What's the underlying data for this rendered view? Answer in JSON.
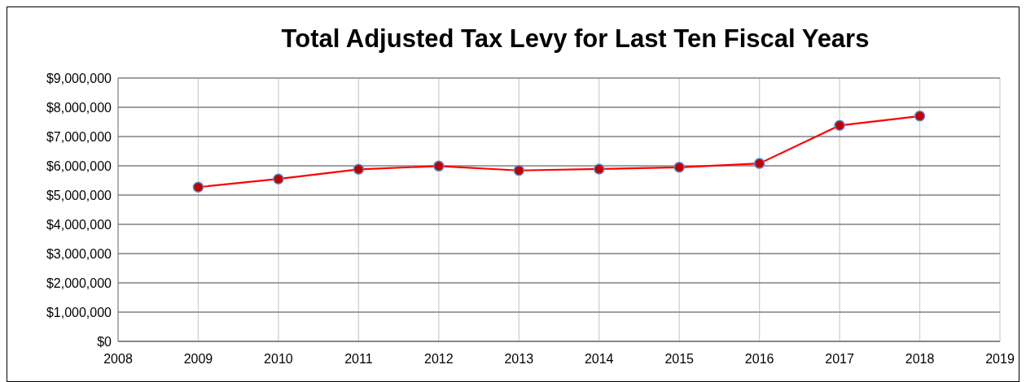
{
  "chart_data": {
    "type": "line",
    "title": "Total Adjusted Tax Levy for Last Ten Fiscal Years",
    "x": [
      2009,
      2010,
      2011,
      2012,
      2013,
      2014,
      2015,
      2016,
      2017,
      2018
    ],
    "series": [
      {
        "color": "#ff0000",
        "values": [
          5270000,
          5550000,
          5880000,
          5990000,
          5840000,
          5890000,
          5950000,
          6080000,
          7380000,
          7700000
        ]
      }
    ],
    "xlim": [
      2008,
      2019
    ],
    "xticks": [
      2008,
      2009,
      2010,
      2011,
      2012,
      2013,
      2014,
      2015,
      2016,
      2017,
      2018,
      2019
    ],
    "ylim": [
      0,
      9000000
    ],
    "yticks": [
      {
        "value": 0,
        "label": "$0"
      },
      {
        "value": 1000000,
        "label": "$1,000,000"
      },
      {
        "value": 2000000,
        "label": "$2,000,000"
      },
      {
        "value": 3000000,
        "label": "$3,000,000"
      },
      {
        "value": 4000000,
        "label": "$4,000,000"
      },
      {
        "value": 5000000,
        "label": "$5,000,000"
      },
      {
        "value": 6000000,
        "label": "$6,000,000"
      },
      {
        "value": 7000000,
        "label": "$7,000,000"
      },
      {
        "value": 8000000,
        "label": "$8,000,000"
      },
      {
        "value": 9000000,
        "label": "$9,000,000"
      }
    ],
    "grid": true,
    "marker": "circle",
    "line_style": "solid"
  }
}
